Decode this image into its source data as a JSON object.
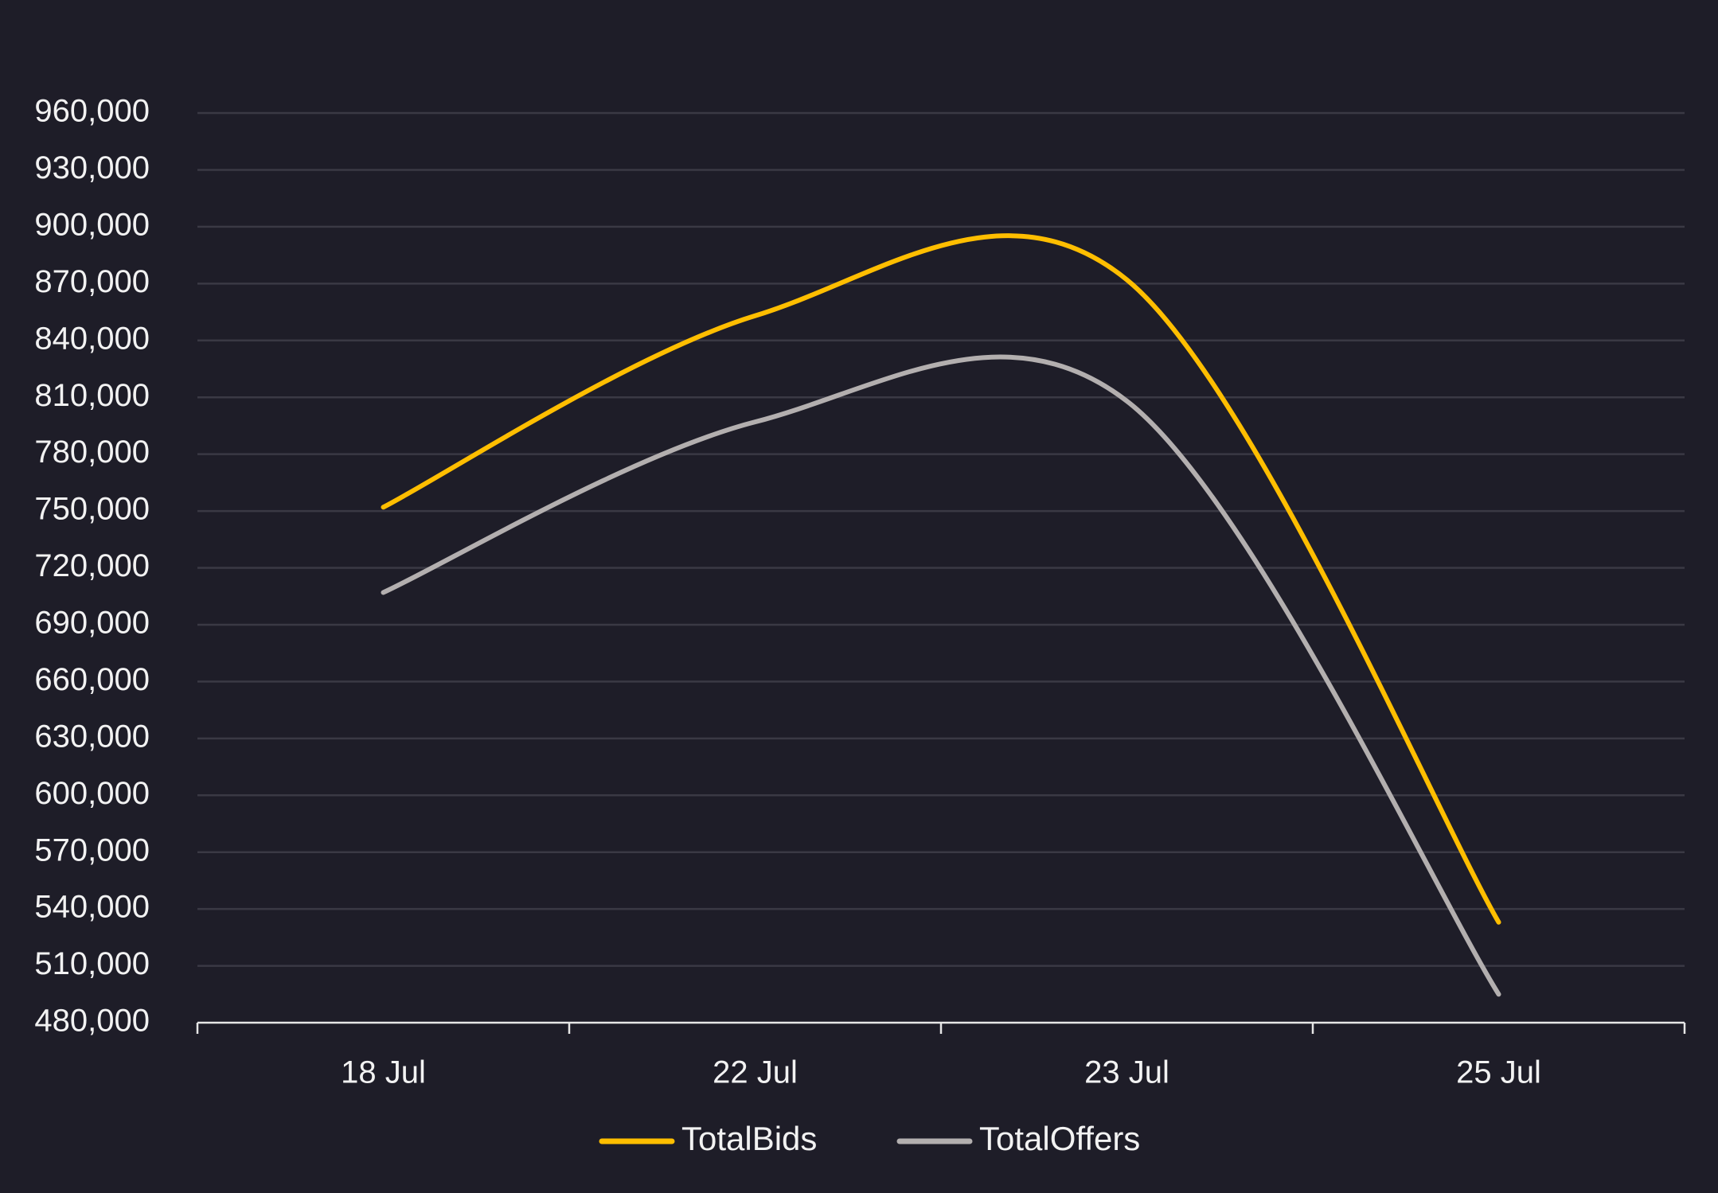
{
  "chart_data": {
    "type": "line",
    "title": "",
    "xlabel": "",
    "ylabel": "",
    "categories": [
      "18 Jul",
      "22 Jul",
      "23 Jul",
      "25 Jul"
    ],
    "y_ticks": [
      "480,000",
      "510,000",
      "540,000",
      "570,000",
      "600,000",
      "630,000",
      "660,000",
      "690,000",
      "720,000",
      "750,000",
      "780,000",
      "810,000",
      "840,000",
      "870,000",
      "900,000",
      "930,000",
      "960,000"
    ],
    "ylim": [
      480000,
      960000
    ],
    "grid": true,
    "legend_position": "bottom",
    "series": [
      {
        "name": "TotalBids",
        "color": "#ffbe00",
        "values": [
          752000,
          853000,
          872000,
          533000
        ]
      },
      {
        "name": "TotalOffers",
        "color": "#b3afaf",
        "values": [
          707000,
          797000,
          808000,
          495000
        ]
      }
    ],
    "colors": {
      "background": "#1e1d28",
      "gridline": "#3a3944",
      "axis": "#e6e6e6",
      "text": "#f2f2f2"
    }
  }
}
